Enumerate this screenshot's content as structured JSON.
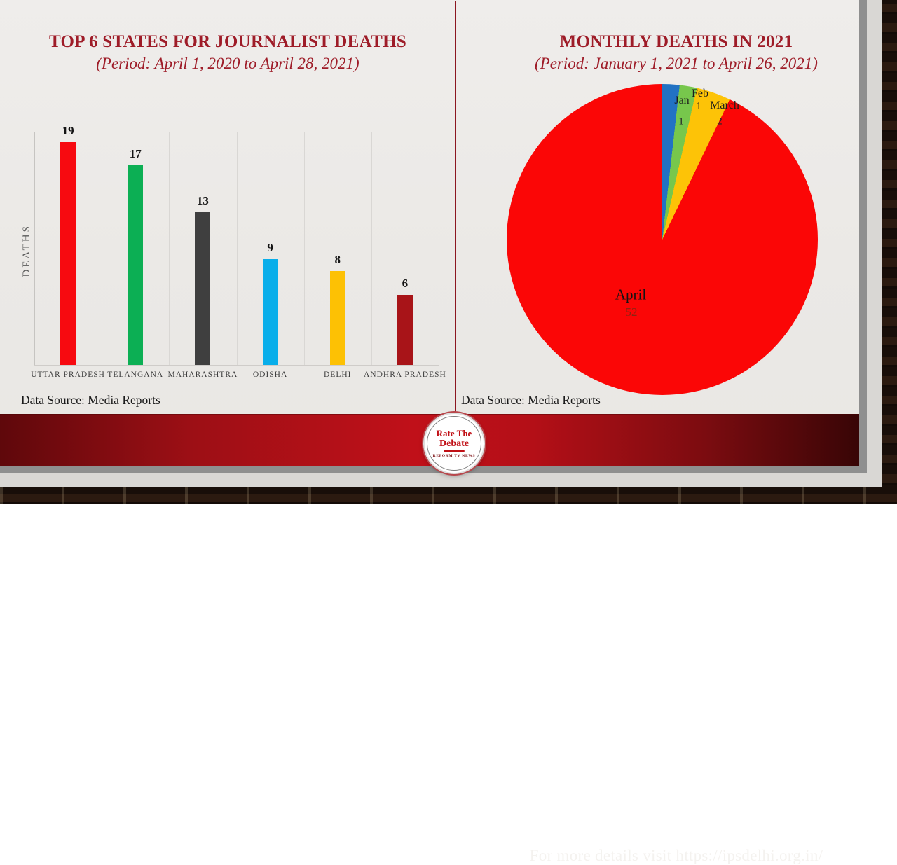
{
  "left_chart": {
    "title": "TOP 6 STATES FOR JOURNALIST DEATHS",
    "subtitle": "(Period: April 1, 2020 to April 28, 2021)",
    "y_axis_label": "DEATHS",
    "source": "Data Source: Media Reports"
  },
  "right_chart": {
    "title": "MONTHLY DEATHS IN 2021",
    "subtitle": "(Period: January 1, 2021 to April 26, 2021)",
    "source": "Data Source: Media Reports"
  },
  "footer": {
    "banner_text": "For more details visit https://ipsdelhi.org.in/",
    "logo_line1": "Rate The",
    "logo_line2": "Debate",
    "logo_tagline": "REFORM TV NEWS"
  },
  "colors": {
    "title_red": "#9e1c28",
    "divider_red": "#8c1721",
    "banner_red": "#c01019",
    "slide_bg": "#edebe8"
  },
  "chart_data": [
    {
      "type": "bar",
      "title": "TOP 6 STATES FOR JOURNALIST DEATHS",
      "subtitle": "(Period: April 1, 2020 to April 28, 2021)",
      "xlabel": "",
      "ylabel": "DEATHS",
      "categories": [
        "UTTAR PRADESH",
        "TELANGANA",
        "MAHARASHTRA",
        "ODISHA",
        "DELHI",
        "ANDHRA PRADESH"
      ],
      "values": [
        19,
        17,
        13,
        9,
        8,
        6
      ],
      "colors": [
        "#f70a10",
        "#0caf54",
        "#3f3f3f",
        "#09aeea",
        "#fdc104",
        "#a81418"
      ],
      "ylim": [
        0,
        20
      ],
      "grid": "vertical category separators only",
      "legend": "none",
      "value_labels": "above bars"
    },
    {
      "type": "pie",
      "title": "MONTHLY DEATHS IN 2021",
      "subtitle": "(Period: January 1, 2021 to April 26, 2021)",
      "labels": [
        "Jan",
        "Feb",
        "March",
        "April"
      ],
      "values": [
        1,
        1,
        2,
        52
      ],
      "colors": [
        "#2272c3",
        "#77c74c",
        "#fdc307",
        "#fb0606"
      ],
      "start_angle_deg": 0,
      "direction": "clockwise",
      "legend": "none",
      "value_labels": "inside slices"
    }
  ]
}
